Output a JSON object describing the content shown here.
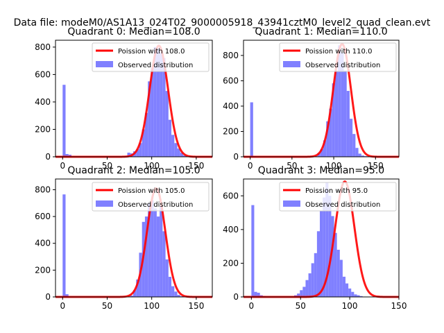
{
  "figure": {
    "suptitle": "Data file: modeM0/AS1A13_024T02_9000005918_43941cztM0_level2_quad_clean.evt"
  },
  "colors": {
    "observed": "#8080ff",
    "poisson": "#ff0000"
  },
  "chart_data": [
    {
      "type": "bar+line",
      "title": "Quadrant 0: Median=108.0",
      "xlim": [
        -8,
        168
      ],
      "ylim": [
        0,
        850
      ],
      "xticks": [
        0,
        50,
        100,
        150
      ],
      "yticks": [
        0,
        200,
        400,
        600,
        800
      ],
      "legend": {
        "location": "top-right",
        "line_label": "Poission with 108.0",
        "bar_label": "Observed distribution"
      },
      "histogram": {
        "bin_start": 0,
        "bin_width": 3.3,
        "values": [
          525,
          20,
          15,
          3,
          0,
          0,
          0,
          0,
          0,
          0,
          0,
          0,
          0,
          0,
          0,
          0,
          0,
          0,
          0,
          0,
          0,
          0,
          30,
          25,
          40,
          55,
          100,
          200,
          320,
          550,
          650,
          800,
          790,
          760,
          720,
          480,
          270,
          160,
          100,
          60,
          30,
          10,
          3,
          0,
          0,
          0,
          0,
          0,
          0
        ]
      },
      "poisson": {
        "mean": 108.0,
        "peak": 810
      }
    },
    {
      "type": "bar+line",
      "title": "Quadrant 1: Median=110.0",
      "xlim": [
        -8,
        178
      ],
      "ylim": [
        0,
        920
      ],
      "xticks": [
        0,
        50,
        100,
        150
      ],
      "yticks": [
        0,
        200,
        400,
        600,
        800
      ],
      "legend": {
        "location": "top-right",
        "line_label": "Poission with 110.0",
        "bar_label": "Observed distribution"
      },
      "histogram": {
        "bin_start": 0,
        "bin_width": 3.5,
        "values": [
          430,
          5,
          3,
          0,
          0,
          0,
          0,
          0,
          0,
          0,
          0,
          0,
          0,
          0,
          0,
          0,
          0,
          0,
          0,
          0,
          0,
          0,
          5,
          30,
          60,
          130,
          280,
          380,
          580,
          680,
          880,
          820,
          680,
          520,
          300,
          180,
          70,
          25,
          10,
          5,
          3,
          0,
          0,
          0,
          0,
          0,
          0,
          0,
          0,
          0
        ]
      },
      "poisson": {
        "mean": 110.0,
        "peak": 890
      }
    },
    {
      "type": "bar+line",
      "title": "Quadrant 2: Median=105.0",
      "xlim": [
        -8,
        168
      ],
      "ylim": [
        0,
        880
      ],
      "xticks": [
        0,
        50,
        100,
        150
      ],
      "yticks": [
        0,
        200,
        400,
        600,
        800
      ],
      "legend": {
        "location": "top-right",
        "line_label": "Poission with 105.0",
        "bar_label": "Observed distribution"
      },
      "histogram": {
        "bin_start": 0,
        "bin_width": 3.3,
        "values": [
          765,
          20,
          0,
          0,
          0,
          0,
          0,
          0,
          0,
          0,
          0,
          0,
          0,
          0,
          0,
          0,
          0,
          0,
          0,
          0,
          0,
          0,
          0,
          10,
          50,
          130,
          330,
          560,
          600,
          700,
          720,
          660,
          600,
          680,
          490,
          280,
          150,
          80,
          40,
          15,
          5,
          3,
          0,
          0,
          0,
          0,
          0,
          0,
          0,
          0
        ]
      },
      "poisson": {
        "mean": 105.0,
        "peak": 810
      }
    },
    {
      "type": "bar+line",
      "title": "Quadrant 3: Median=95.0",
      "xlim": [
        -8,
        150
      ],
      "ylim": [
        0,
        700
      ],
      "xticks": [
        0,
        50,
        100,
        150
      ],
      "yticks": [
        0,
        200,
        400,
        600
      ],
      "legend": {
        "location": "top-right",
        "line_label": "Poission with 95.0",
        "bar_label": "Observed distribution"
      },
      "histogram": {
        "bin_start": 0,
        "bin_width": 2.9,
        "values": [
          545,
          30,
          25,
          10,
          5,
          0,
          0,
          0,
          0,
          0,
          0,
          0,
          0,
          0,
          0,
          10,
          20,
          40,
          60,
          100,
          140,
          200,
          260,
          390,
          510,
          590,
          680,
          600,
          480,
          380,
          280,
          220,
          120,
          80,
          50,
          30,
          15,
          10,
          5,
          0,
          0,
          0,
          0,
          0,
          0,
          0,
          0,
          0,
          0
        ]
      },
      "poisson": {
        "mean": 95.0,
        "peak": 685
      }
    }
  ]
}
